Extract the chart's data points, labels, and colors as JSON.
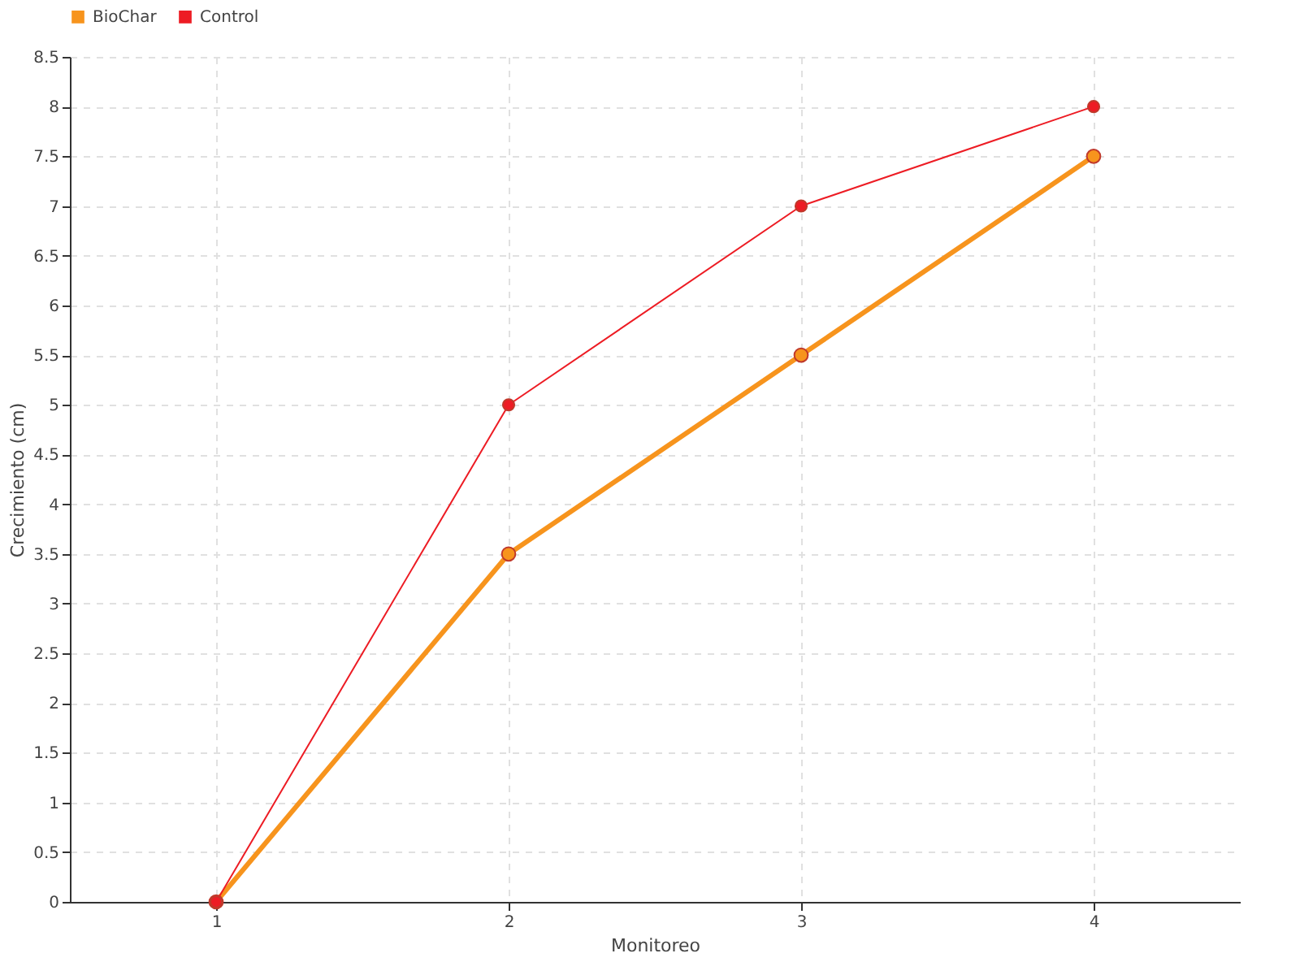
{
  "chart_data": {
    "type": "line",
    "xlabel": "Monitoreo",
    "ylabel": "Crecimiento (cm)",
    "x": [
      1,
      2,
      3,
      4
    ],
    "series": [
      {
        "name": "BioChar",
        "color": "#f7941d",
        "values": [
          0,
          3.5,
          5.5,
          7.5
        ]
      },
      {
        "name": "Control",
        "color": "#ed1c24",
        "values": [
          0,
          5,
          7,
          8
        ]
      }
    ],
    "xlim": [
      0.5,
      4.5
    ],
    "xticks": [
      1,
      2,
      3,
      4
    ],
    "ylim": [
      0,
      8.5
    ],
    "yticks": [
      0,
      0.5,
      1,
      1.5,
      2,
      2.5,
      3,
      3.5,
      4,
      4.5,
      5,
      5.5,
      6,
      6.5,
      7,
      7.5,
      8,
      8.5
    ],
    "grid": true,
    "legend": "top left",
    "marker": "circle"
  }
}
